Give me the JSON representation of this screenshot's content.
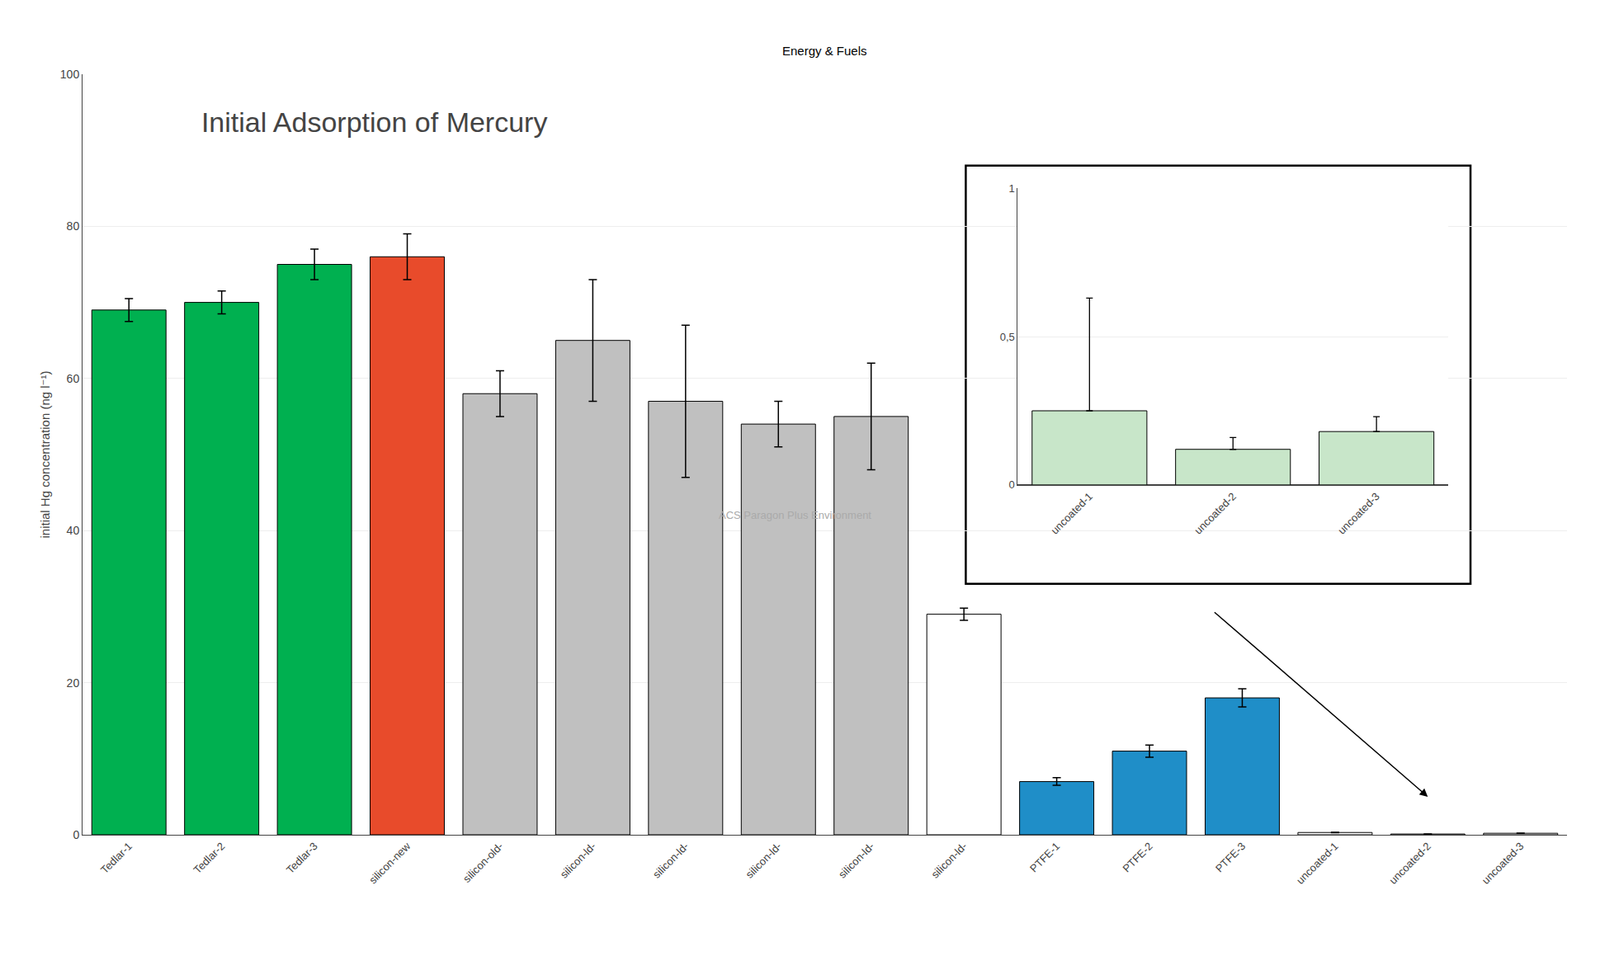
{
  "chart_data": [
    {
      "type": "bar",
      "title": "Initial Adsorption of Mercury",
      "subtitle": "Energy & Fuels",
      "ylabel": "initial Hg concentration (ng l⁻¹)",
      "annotations": [
        "ACS Paragon Plus Environment"
      ],
      "categories": [
        "Tedlar-1",
        "Tedlar-2",
        "Tedlar-3",
        "silicon-new",
        "silicon-old-",
        "silicon-ld-",
        "silicon-ld-",
        "silicon-ld-",
        "silicon-ld-",
        "silicon-ld-",
        "PTFE-1",
        "PTFE-2",
        "PTFE-3",
        "uncoated-1",
        "uncoated-2",
        "uncoated-3"
      ],
      "values": [
        69,
        70,
        75,
        76,
        58,
        65,
        57,
        54,
        55,
        29,
        7,
        11,
        18,
        0.3,
        0.1,
        0.2
      ],
      "errors": [
        1.5,
        1.5,
        2.0,
        3.0,
        3,
        8,
        10,
        3,
        7,
        0.8,
        0.5,
        0.8,
        1.2,
        0.03,
        0.01,
        0.02
      ],
      "colors": [
        "#00b050",
        "#00b050",
        "#00b050",
        "#e84b2b",
        "#c0c0c0",
        "#c0c0c0",
        "#c0c0c0",
        "#c0c0c0",
        "#c0c0c0",
        "#ffffff",
        "#1f8ec8",
        "#1f8ec8",
        "#1f8ec8",
        "#ffffff",
        "#ffffff",
        "#ffffff"
      ],
      "ylim": [
        0,
        100
      ],
      "yticks": [
        0,
        20,
        40,
        60,
        80,
        100
      ],
      "grid": true
    },
    {
      "type": "bar",
      "categories": [
        "uncoated-1",
        "uncoated-2",
        "uncoated-3"
      ],
      "values": [
        0.25,
        0.12,
        0.18
      ],
      "error_low": [
        0.0,
        0.0,
        0.0
      ],
      "error_high": [
        0.38,
        0.04,
        0.05
      ],
      "color": "#c8e6c9",
      "ylim": [
        0,
        1
      ],
      "yticks": [
        0,
        {
          "value": 0.5,
          "label": "0,5"
        },
        1
      ],
      "grid": true
    }
  ]
}
